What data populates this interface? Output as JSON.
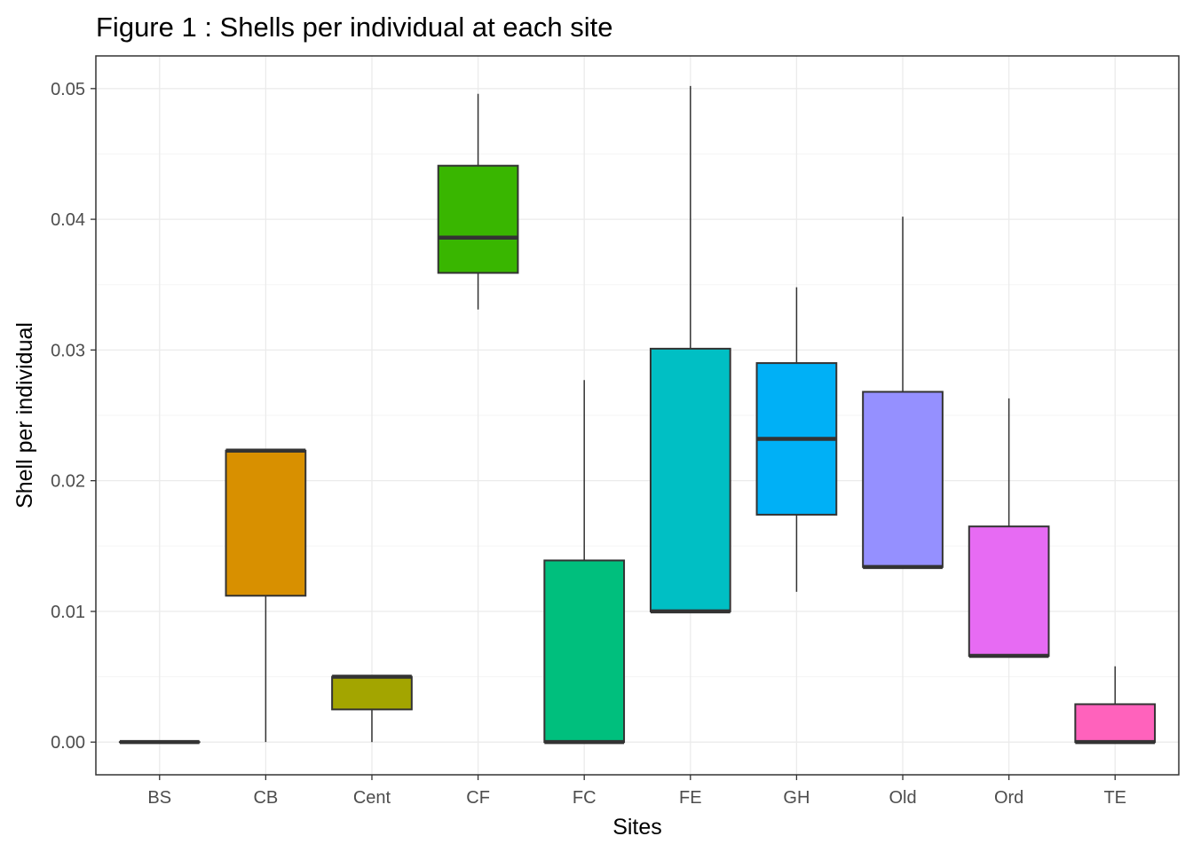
{
  "chart_data": {
    "type": "boxplot",
    "title": "Figure 1 : Shells per individual at each site",
    "xlabel": "Sites",
    "ylabel": "Shell per individual",
    "ylim": [
      -0.0025,
      0.0525
    ],
    "yticks": [
      0.0,
      0.01,
      0.02,
      0.03,
      0.04,
      0.05
    ],
    "ytick_labels": [
      "0.00",
      "0.01",
      "0.02",
      "0.03",
      "0.04",
      "0.05"
    ],
    "grid": true,
    "legend": "none",
    "categories": [
      "BS",
      "CB",
      "Cent",
      "CF",
      "FC",
      "FE",
      "GH",
      "Old",
      "Ord",
      "TE"
    ],
    "boxes": [
      {
        "site": "BS",
        "min": 0.0,
        "q1": 0.0,
        "median": 0.0,
        "q3": 0.0,
        "max": 0.0,
        "color": "#F8766D"
      },
      {
        "site": "CB",
        "min": 0.0,
        "q1": 0.0112,
        "median": 0.0223,
        "q3": 0.0223,
        "max": 0.0223,
        "color": "#D89000"
      },
      {
        "site": "Cent",
        "min": 0.0,
        "q1": 0.0025,
        "median": 0.005,
        "q3": 0.005,
        "max": 0.005,
        "color": "#A3A500"
      },
      {
        "site": "CF",
        "min": 0.0331,
        "q1": 0.0359,
        "median": 0.0386,
        "q3": 0.0441,
        "max": 0.0496,
        "color": "#39B600"
      },
      {
        "site": "FC",
        "min": 0.0,
        "q1": 0.0,
        "median": 0.0,
        "q3": 0.0139,
        "max": 0.0277,
        "color": "#00BF7D"
      },
      {
        "site": "FE",
        "min": 0.01,
        "q1": 0.01,
        "median": 0.01,
        "q3": 0.0301,
        "max": 0.0502,
        "color": "#00BFC4"
      },
      {
        "site": "GH",
        "min": 0.0115,
        "q1": 0.0174,
        "median": 0.0232,
        "q3": 0.029,
        "max": 0.0348,
        "color": "#00B0F6"
      },
      {
        "site": "Old",
        "min": 0.0134,
        "q1": 0.0134,
        "median": 0.0134,
        "q3": 0.0268,
        "max": 0.0402,
        "color": "#9590FF"
      },
      {
        "site": "Ord",
        "min": 0.0066,
        "q1": 0.0066,
        "median": 0.0066,
        "q3": 0.0165,
        "max": 0.0263,
        "color": "#E76BF3"
      },
      {
        "site": "TE",
        "min": 0.0,
        "q1": 0.0,
        "median": 0.0,
        "q3": 0.0029,
        "max": 0.0058,
        "color": "#FF62BC"
      }
    ]
  }
}
